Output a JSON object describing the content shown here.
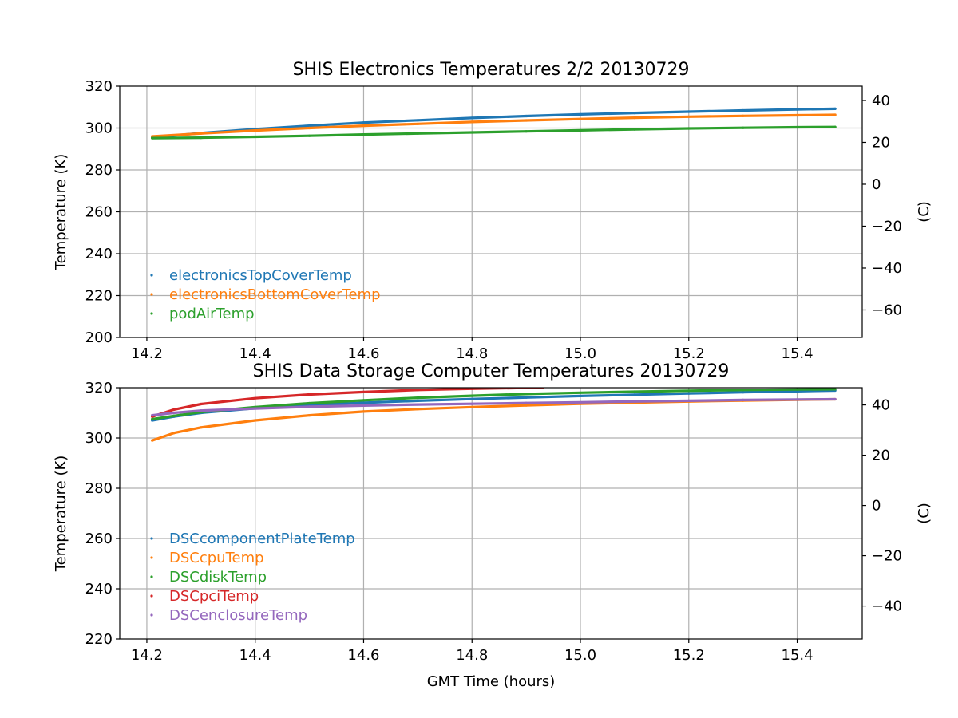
{
  "chart_data": [
    {
      "type": "scatter",
      "title": "SHIS Electronics Temperatures 2/2 20130729",
      "xlabel": "",
      "ylabel": "Temperature (K)",
      "ylabel_right": "(C)",
      "xlim": [
        14.15,
        15.52
      ],
      "ylim": [
        200,
        320
      ],
      "ylim_right": [
        -73.15,
        46.85
      ],
      "xticks": [
        "14.2",
        "14.4",
        "14.6",
        "14.8",
        "15.0",
        "15.2",
        "15.4"
      ],
      "yticks": [
        "200",
        "220",
        "240",
        "260",
        "280",
        "300",
        "320"
      ],
      "yticks_right": [
        "−60",
        "−40",
        "−20",
        "0",
        "20",
        "40"
      ],
      "grid": true,
      "legend_position": "lower-left",
      "series": [
        {
          "name": "electronicsTopCoverTemp",
          "color": "#1f77b4",
          "x": [
            14.21,
            14.3,
            14.4,
            14.5,
            14.6,
            14.7,
            14.8,
            14.9,
            15.0,
            15.1,
            15.2,
            15.3,
            15.4,
            15.47
          ],
          "y": [
            295.5,
            297.6,
            299.5,
            301.1,
            302.6,
            303.7,
            304.8,
            305.7,
            306.5,
            307.2,
            307.8,
            308.4,
            308.9,
            309.2
          ]
        },
        {
          "name": "electronicsBottomCoverTemp",
          "color": "#ff7f0e",
          "x": [
            14.21,
            14.3,
            14.4,
            14.5,
            14.6,
            14.7,
            14.8,
            14.9,
            15.0,
            15.1,
            15.2,
            15.3,
            15.4,
            15.47
          ],
          "y": [
            296.0,
            297.4,
            298.8,
            300.0,
            301.1,
            302.0,
            302.9,
            303.6,
            304.3,
            304.9,
            305.4,
            305.8,
            306.1,
            306.3
          ]
        },
        {
          "name": "podAirTemp",
          "color": "#2ca02c",
          "x": [
            14.21,
            14.3,
            14.4,
            14.5,
            14.6,
            14.7,
            14.8,
            14.9,
            15.0,
            15.1,
            15.2,
            15.3,
            15.4,
            15.47
          ],
          "y": [
            295.2,
            295.4,
            295.8,
            296.3,
            296.9,
            297.4,
            297.9,
            298.4,
            298.9,
            299.4,
            299.8,
            300.1,
            300.4,
            300.5
          ]
        }
      ]
    },
    {
      "type": "scatter",
      "title": "SHIS Data Storage Computer Temperatures 20130729",
      "xlabel": "GMT Time (hours)",
      "ylabel": "Temperature (K)",
      "ylabel_right": "(C)",
      "xlim": [
        14.15,
        15.52
      ],
      "ylim": [
        220,
        320
      ],
      "ylim_right": [
        -53.15,
        46.85
      ],
      "xticks": [
        "14.2",
        "14.4",
        "14.6",
        "14.8",
        "15.0",
        "15.2",
        "15.4"
      ],
      "yticks": [
        "220",
        "240",
        "260",
        "280",
        "300",
        "320"
      ],
      "yticks_right": [
        "−40",
        "−20",
        "0",
        "20",
        "40"
      ],
      "grid": true,
      "legend_position": "lower-left",
      "series": [
        {
          "name": "DSCcomponentPlateTemp",
          "color": "#1f77b4",
          "x": [
            14.21,
            14.25,
            14.3,
            14.4,
            14.5,
            14.6,
            14.7,
            14.8,
            14.9,
            15.0,
            15.1,
            15.2,
            15.3,
            15.4,
            15.47
          ],
          "y": [
            307.0,
            308.5,
            310.0,
            311.8,
            313.0,
            314.0,
            314.8,
            315.5,
            316.1,
            316.7,
            317.2,
            317.7,
            318.2,
            318.6,
            318.9
          ]
        },
        {
          "name": "DSCcpuTemp",
          "color": "#ff7f0e",
          "x": [
            14.21,
            14.25,
            14.3,
            14.4,
            14.5,
            14.6,
            14.7,
            14.8,
            14.9,
            15.0,
            15.1,
            15.2,
            15.3,
            15.4,
            15.47
          ],
          "y": [
            299.0,
            302.0,
            304.2,
            307.0,
            309.0,
            310.5,
            311.5,
            312.3,
            313.0,
            313.6,
            314.1,
            314.5,
            314.9,
            315.2,
            315.4
          ]
        },
        {
          "name": "DSCdiskTemp",
          "color": "#2ca02c",
          "x": [
            14.21,
            14.25,
            14.3,
            14.4,
            14.5,
            14.6,
            14.7,
            14.8,
            14.9,
            15.0,
            15.1,
            15.2,
            15.3,
            15.4,
            15.47
          ],
          "y": [
            307.5,
            308.8,
            310.3,
            312.3,
            313.8,
            315.0,
            316.0,
            316.8,
            317.5,
            318.0,
            318.4,
            318.8,
            319.1,
            319.3,
            319.4
          ]
        },
        {
          "name": "DSCpciTemp",
          "color": "#d62728",
          "x": [
            14.21,
            14.25,
            14.3,
            14.4,
            14.5,
            14.6,
            14.7,
            14.8,
            14.9,
            14.93
          ],
          "y": [
            308.5,
            311.3,
            313.5,
            315.8,
            317.3,
            318.3,
            319.1,
            319.6,
            319.95,
            320.0
          ]
        },
        {
          "name": "DSCenclosureTemp",
          "color": "#9467bd",
          "x": [
            14.21,
            14.25,
            14.3,
            14.4,
            14.5,
            14.6,
            14.7,
            14.8,
            14.9,
            15.0,
            15.1,
            15.2,
            15.3,
            15.4,
            15.47
          ],
          "y": [
            309.0,
            310.0,
            310.9,
            311.7,
            312.4,
            312.9,
            313.3,
            313.6,
            313.9,
            314.2,
            314.5,
            314.8,
            315.1,
            315.3,
            315.4
          ]
        }
      ]
    }
  ]
}
